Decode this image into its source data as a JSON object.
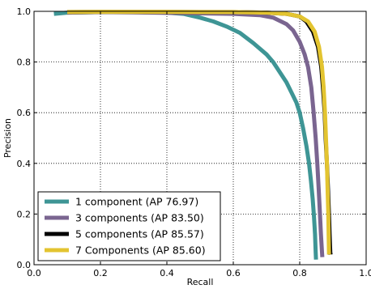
{
  "chart_data": {
    "type": "line",
    "title": "",
    "xlabel": "Recall",
    "ylabel": "Precision",
    "xlim": [
      0.0,
      1.0
    ],
    "ylim": [
      0.0,
      1.0
    ],
    "xticks": [
      "0.0",
      "0.2",
      "0.4",
      "0.6",
      "0.8",
      "1.0"
    ],
    "yticks": [
      "0.0",
      "0.2",
      "0.4",
      "0.6",
      "0.8",
      "1.0"
    ],
    "grid": true,
    "legend_position": "bottom-left",
    "series": [
      {
        "name": "1 component (AP 76.97)",
        "color": "#3e9595",
        "points": [
          [
            0.06,
            0.99
          ],
          [
            0.1,
            0.995
          ],
          [
            0.2,
            0.997
          ],
          [
            0.3,
            0.997
          ],
          [
            0.4,
            0.995
          ],
          [
            0.45,
            0.99
          ],
          [
            0.5,
            0.975
          ],
          [
            0.54,
            0.96
          ],
          [
            0.58,
            0.94
          ],
          [
            0.62,
            0.915
          ],
          [
            0.66,
            0.875
          ],
          [
            0.7,
            0.83
          ],
          [
            0.72,
            0.8
          ],
          [
            0.74,
            0.76
          ],
          [
            0.76,
            0.72
          ],
          [
            0.775,
            0.68
          ],
          [
            0.79,
            0.64
          ],
          [
            0.8,
            0.6
          ],
          [
            0.81,
            0.54
          ],
          [
            0.82,
            0.47
          ],
          [
            0.828,
            0.4
          ],
          [
            0.834,
            0.33
          ],
          [
            0.839,
            0.26
          ],
          [
            0.843,
            0.19
          ],
          [
            0.846,
            0.12
          ],
          [
            0.848,
            0.05
          ],
          [
            0.849,
            0.02
          ]
        ]
      },
      {
        "name": "3 components (AP 83.50)",
        "color": "#7a6590",
        "points": [
          [
            0.1,
            0.995
          ],
          [
            0.2,
            0.997
          ],
          [
            0.3,
            0.996
          ],
          [
            0.4,
            0.994
          ],
          [
            0.5,
            0.992
          ],
          [
            0.6,
            0.99
          ],
          [
            0.68,
            0.985
          ],
          [
            0.72,
            0.975
          ],
          [
            0.76,
            0.95
          ],
          [
            0.78,
            0.925
          ],
          [
            0.8,
            0.88
          ],
          [
            0.815,
            0.83
          ],
          [
            0.825,
            0.78
          ],
          [
            0.835,
            0.7
          ],
          [
            0.842,
            0.6
          ],
          [
            0.848,
            0.5
          ],
          [
            0.853,
            0.4
          ],
          [
            0.857,
            0.3
          ],
          [
            0.861,
            0.2
          ],
          [
            0.864,
            0.12
          ],
          [
            0.867,
            0.05
          ],
          [
            0.868,
            0.03
          ]
        ]
      },
      {
        "name": "5 components (AP 85.57)",
        "color": "#000000",
        "points": [
          [
            0.1,
            0.997
          ],
          [
            0.2,
            0.998
          ],
          [
            0.3,
            0.998
          ],
          [
            0.4,
            0.998
          ],
          [
            0.5,
            0.997
          ],
          [
            0.6,
            0.997
          ],
          [
            0.7,
            0.995
          ],
          [
            0.76,
            0.99
          ],
          [
            0.8,
            0.98
          ],
          [
            0.82,
            0.96
          ],
          [
            0.84,
            0.92
          ],
          [
            0.855,
            0.86
          ],
          [
            0.865,
            0.78
          ],
          [
            0.87,
            0.7
          ],
          [
            0.875,
            0.6
          ],
          [
            0.878,
            0.5
          ],
          [
            0.882,
            0.4
          ],
          [
            0.885,
            0.3
          ],
          [
            0.888,
            0.2
          ],
          [
            0.89,
            0.12
          ],
          [
            0.892,
            0.05
          ],
          [
            0.893,
            0.04
          ]
        ]
      },
      {
        "name": "7 Components (AP 85.60)",
        "color": "#e3c430",
        "points": [
          [
            0.1,
            0.997
          ],
          [
            0.2,
            0.998
          ],
          [
            0.3,
            0.998
          ],
          [
            0.4,
            0.998
          ],
          [
            0.5,
            0.997
          ],
          [
            0.6,
            0.997
          ],
          [
            0.7,
            0.995
          ],
          [
            0.76,
            0.99
          ],
          [
            0.8,
            0.98
          ],
          [
            0.825,
            0.96
          ],
          [
            0.845,
            0.92
          ],
          [
            0.858,
            0.86
          ],
          [
            0.867,
            0.78
          ],
          [
            0.872,
            0.7
          ],
          [
            0.876,
            0.6
          ],
          [
            0.879,
            0.5
          ],
          [
            0.882,
            0.4
          ],
          [
            0.884,
            0.3
          ],
          [
            0.886,
            0.2
          ],
          [
            0.887,
            0.12
          ],
          [
            0.888,
            0.05
          ],
          [
            0.888,
            0.04
          ]
        ]
      }
    ]
  }
}
